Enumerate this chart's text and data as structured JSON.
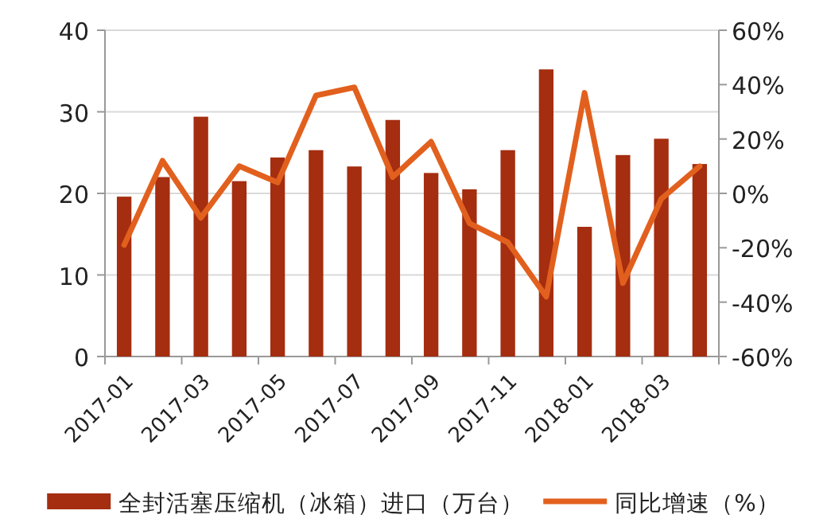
{
  "chart_data": {
    "type": "bar",
    "categories": [
      "2017-01",
      null,
      "2017-03",
      null,
      "2017-05",
      null,
      "2017-07",
      null,
      "2017-09",
      null,
      "2017-11",
      null,
      "2018-01",
      null,
      "2018-03",
      null
    ],
    "series": [
      {
        "name": "全封活塞压缩机（冰箱）进口（万台）",
        "color": "#a52d10",
        "values": [
          19.6,
          22.0,
          29.4,
          21.5,
          24.4,
          25.3,
          23.3,
          29.0,
          22.5,
          20.5,
          25.3,
          35.2,
          15.9,
          24.7,
          26.7,
          23.6
        ]
      },
      {
        "name": "同比增速（%）",
        "type": "line",
        "axis": "y2",
        "color": "#e2601e",
        "values": [
          -19,
          12,
          -9,
          10,
          4,
          36,
          39,
          6,
          19,
          -11,
          -18,
          -38,
          37,
          -33,
          -2,
          10
        ]
      }
    ],
    "ylim": [
      0,
      40
    ],
    "yticks": [
      0,
      10,
      20,
      30,
      40
    ],
    "y2lim": [
      -60,
      60
    ],
    "y2ticks": [
      {
        "value": -60,
        "label": "-60%"
      },
      {
        "value": -40,
        "label": "-40%"
      },
      {
        "value": -20,
        "label": "-20%"
      },
      {
        "value": 0,
        "label": "0%"
      },
      {
        "value": 20,
        "label": "20%"
      },
      {
        "value": 40,
        "label": "40%"
      },
      {
        "value": 60,
        "label": "60%"
      }
    ],
    "grid": "y",
    "legend": "bottom",
    "marker": "none",
    "line_style": "solid"
  }
}
